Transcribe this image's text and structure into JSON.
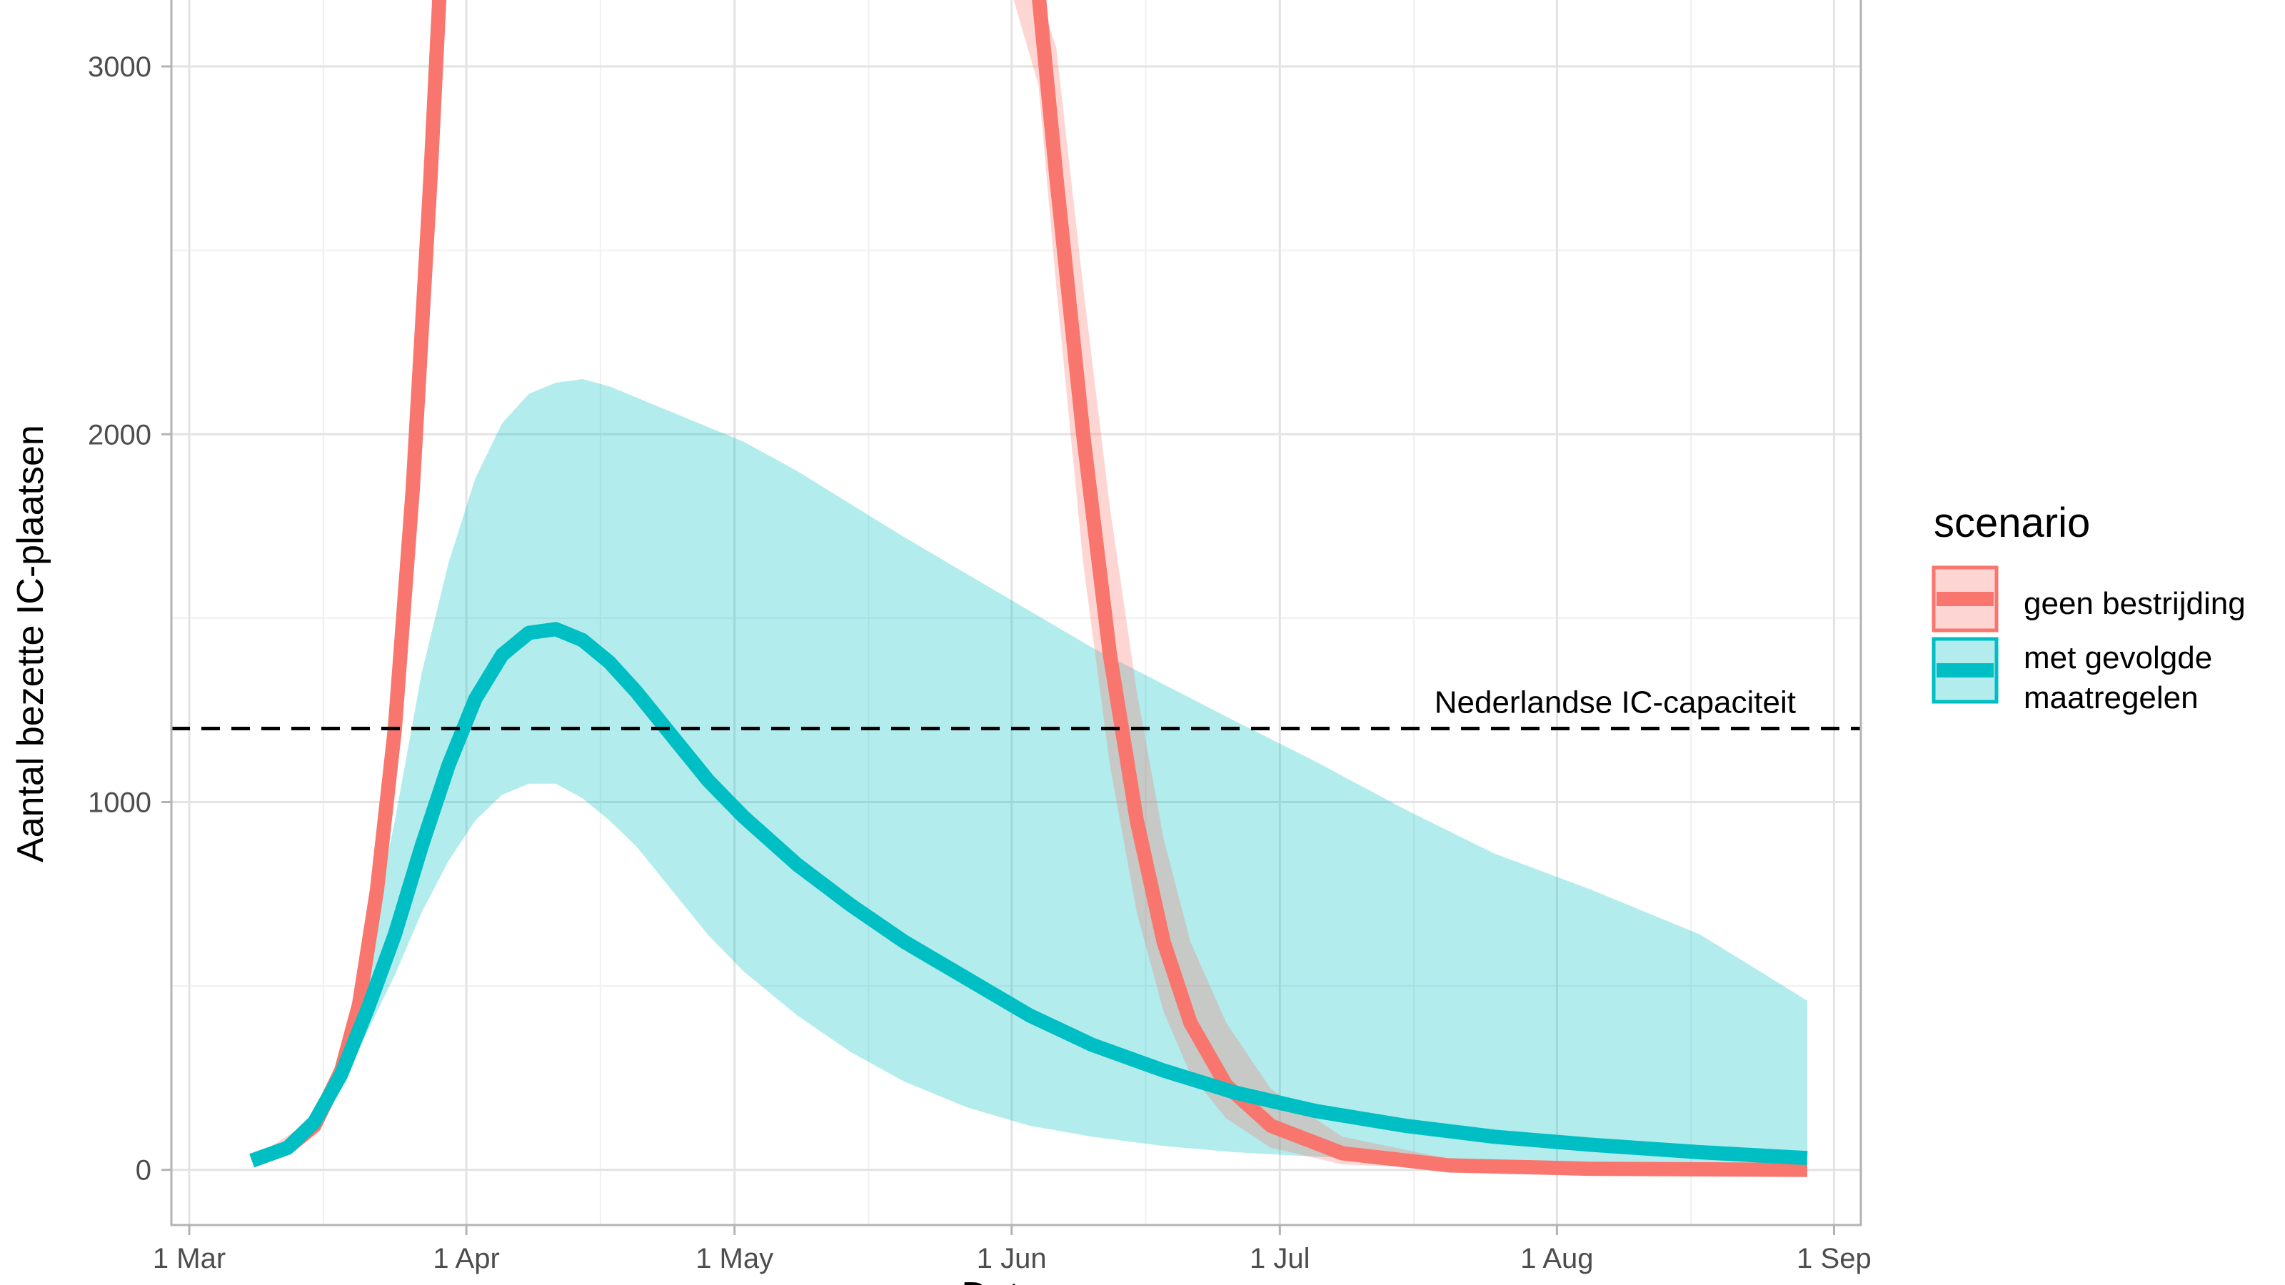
{
  "chart_data": {
    "type": "line",
    "xlabel": "Datum",
    "ylabel": "Aantal bezette IC-plaatsen",
    "x_domain": [
      "2020-02-28",
      "2020-09-04"
    ],
    "ylim": [
      -150,
      3200
    ],
    "x_ticks": [
      {
        "date": "2020-03-01",
        "label": "1 Mar"
      },
      {
        "date": "2020-04-01",
        "label": "1 Apr"
      },
      {
        "date": "2020-05-01",
        "label": "1 May"
      },
      {
        "date": "2020-06-01",
        "label": "1 Jun"
      },
      {
        "date": "2020-07-01",
        "label": "1 Jul"
      },
      {
        "date": "2020-08-01",
        "label": "1 Aug"
      },
      {
        "date": "2020-09-01",
        "label": "1 Sep"
      }
    ],
    "x_minor_ticks": [
      "2020-03-16",
      "2020-04-16",
      "2020-05-16",
      "2020-06-16",
      "2020-07-16",
      "2020-08-16"
    ],
    "y_ticks": [
      0,
      1000,
      2000,
      3000
    ],
    "y_minor_ticks": [
      500,
      1500,
      2500
    ],
    "grid": true,
    "legend": {
      "title": "scenario",
      "position": "right",
      "items": [
        {
          "label": "geen bestrijding",
          "color": "#F8766D"
        },
        {
          "label_lines": [
            "met gevolgde",
            " maatregelen"
          ],
          "color": "#00BFC4"
        }
      ]
    },
    "reference_line": {
      "y": 1200,
      "label": "Nederlandse IC-capaciteit",
      "style": "dashed",
      "color": "#000000"
    },
    "series": [
      {
        "name": "geen bestrijding",
        "color": "#F8766D",
        "segments": [
          [
            {
              "x": "2020-03-08",
              "y": 25
            },
            {
              "x": "2020-03-12",
              "y": 60
            },
            {
              "x": "2020-03-15",
              "y": 120
            },
            {
              "x": "2020-03-18",
              "y": 270
            },
            {
              "x": "2020-03-20",
              "y": 450
            },
            {
              "x": "2020-03-22",
              "y": 760
            },
            {
              "x": "2020-03-24",
              "y": 1200
            },
            {
              "x": "2020-03-26",
              "y": 1850
            },
            {
              "x": "2020-03-28",
              "y": 2700
            },
            {
              "x": "2020-03-29",
              "y": 3200
            }
          ],
          [
            {
              "x": "2020-06-04",
              "y": 3200
            },
            {
              "x": "2020-06-06",
              "y": 2700
            },
            {
              "x": "2020-06-09",
              "y": 2000
            },
            {
              "x": "2020-06-12",
              "y": 1400
            },
            {
              "x": "2020-06-15",
              "y": 950
            },
            {
              "x": "2020-06-18",
              "y": 620
            },
            {
              "x": "2020-06-21",
              "y": 400
            },
            {
              "x": "2020-06-25",
              "y": 230
            },
            {
              "x": "2020-06-30",
              "y": 120
            },
            {
              "x": "2020-07-08",
              "y": 45
            },
            {
              "x": "2020-07-20",
              "y": 12
            },
            {
              "x": "2020-08-05",
              "y": 3
            },
            {
              "x": "2020-08-29",
              "y": 0
            }
          ]
        ],
        "band_segments": [
          [
            {
              "x": "2020-03-08",
              "lo": 25,
              "hi": 30
            },
            {
              "x": "2020-03-15",
              "lo": 110,
              "hi": 140
            },
            {
              "x": "2020-03-18",
              "lo": 240,
              "hi": 320
            },
            {
              "x": "2020-03-20",
              "lo": 400,
              "hi": 540
            },
            {
              "x": "2020-03-22",
              "lo": 680,
              "hi": 900
            },
            {
              "x": "2020-03-24",
              "lo": 1080,
              "hi": 1400
            },
            {
              "x": "2020-03-26",
              "lo": 1700,
              "hi": 2150
            },
            {
              "x": "2020-03-28",
              "lo": 2500,
              "hi": 3100
            },
            {
              "x": "2020-03-29",
              "lo": 2950,
              "hi": 3200
            }
          ],
          [
            {
              "x": "2020-06-01",
              "lo": 3200,
              "hi": 3200
            },
            {
              "x": "2020-06-04",
              "lo": 2950,
              "hi": 3200
            },
            {
              "x": "2020-06-06",
              "lo": 2400,
              "hi": 3050
            },
            {
              "x": "2020-06-09",
              "lo": 1650,
              "hi": 2400
            },
            {
              "x": "2020-06-12",
              "lo": 1100,
              "hi": 1800
            },
            {
              "x": "2020-06-15",
              "lo": 700,
              "hi": 1300
            },
            {
              "x": "2020-06-18",
              "lo": 430,
              "hi": 900
            },
            {
              "x": "2020-06-21",
              "lo": 260,
              "hi": 620
            },
            {
              "x": "2020-06-25",
              "lo": 140,
              "hi": 400
            },
            {
              "x": "2020-06-30",
              "lo": 60,
              "hi": 220
            },
            {
              "x": "2020-07-08",
              "lo": 15,
              "hi": 90
            },
            {
              "x": "2020-07-20",
              "lo": 3,
              "hi": 30
            },
            {
              "x": "2020-08-05",
              "lo": 0,
              "hi": 8
            },
            {
              "x": "2020-08-29",
              "lo": 0,
              "hi": 1
            }
          ]
        ]
      },
      {
        "name": "met gevolgde maatregelen",
        "color": "#00BFC4",
        "points": [
          {
            "x": "2020-03-08",
            "y": 25,
            "lo": 25,
            "hi": 30
          },
          {
            "x": "2020-03-12",
            "y": 60,
            "lo": 55,
            "hi": 70
          },
          {
            "x": "2020-03-15",
            "y": 130,
            "lo": 120,
            "hi": 150
          },
          {
            "x": "2020-03-18",
            "y": 260,
            "lo": 230,
            "hi": 320
          },
          {
            "x": "2020-03-21",
            "y": 440,
            "lo": 380,
            "hi": 600
          },
          {
            "x": "2020-03-24",
            "y": 640,
            "lo": 530,
            "hi": 950
          },
          {
            "x": "2020-03-27",
            "y": 880,
            "lo": 700,
            "hi": 1350
          },
          {
            "x": "2020-03-30",
            "y": 1100,
            "lo": 840,
            "hi": 1650
          },
          {
            "x": "2020-04-02",
            "y": 1280,
            "lo": 950,
            "hi": 1880
          },
          {
            "x": "2020-04-05",
            "y": 1400,
            "lo": 1020,
            "hi": 2030
          },
          {
            "x": "2020-04-08",
            "y": 1460,
            "lo": 1050,
            "hi": 2110
          },
          {
            "x": "2020-04-11",
            "y": 1470,
            "lo": 1050,
            "hi": 2140
          },
          {
            "x": "2020-04-14",
            "y": 1440,
            "lo": 1010,
            "hi": 2150
          },
          {
            "x": "2020-04-17",
            "y": 1380,
            "lo": 950,
            "hi": 2130
          },
          {
            "x": "2020-04-20",
            "y": 1300,
            "lo": 880,
            "hi": 2100
          },
          {
            "x": "2020-04-24",
            "y": 1180,
            "lo": 760,
            "hi": 2060
          },
          {
            "x": "2020-04-28",
            "y": 1060,
            "lo": 640,
            "hi": 2020
          },
          {
            "x": "2020-05-02",
            "y": 960,
            "lo": 540,
            "hi": 1980
          },
          {
            "x": "2020-05-08",
            "y": 830,
            "lo": 420,
            "hi": 1900
          },
          {
            "x": "2020-05-14",
            "y": 720,
            "lo": 320,
            "hi": 1810
          },
          {
            "x": "2020-05-20",
            "y": 620,
            "lo": 240,
            "hi": 1720
          },
          {
            "x": "2020-05-27",
            "y": 520,
            "lo": 170,
            "hi": 1620
          },
          {
            "x": "2020-06-03",
            "y": 420,
            "lo": 120,
            "hi": 1520
          },
          {
            "x": "2020-06-10",
            "y": 340,
            "lo": 90,
            "hi": 1420
          },
          {
            "x": "2020-06-18",
            "y": 270,
            "lo": 65,
            "hi": 1320
          },
          {
            "x": "2020-06-26",
            "y": 210,
            "lo": 48,
            "hi": 1220
          },
          {
            "x": "2020-07-05",
            "y": 160,
            "lo": 36,
            "hi": 1110
          },
          {
            "x": "2020-07-15",
            "y": 120,
            "lo": 26,
            "hi": 980
          },
          {
            "x": "2020-07-25",
            "y": 90,
            "lo": 19,
            "hi": 860
          },
          {
            "x": "2020-08-05",
            "y": 68,
            "lo": 13,
            "hi": 760
          },
          {
            "x": "2020-08-17",
            "y": 48,
            "lo": 9,
            "hi": 640
          },
          {
            "x": "2020-08-29",
            "y": 32,
            "lo": 6,
            "hi": 460
          }
        ]
      }
    ]
  }
}
